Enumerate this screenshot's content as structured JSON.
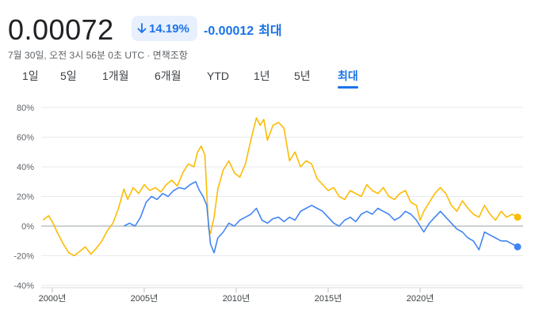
{
  "quote": {
    "price": "0.00072",
    "percent_change": "14.19%",
    "percent_direction": "down",
    "abs_change": "-0.00012",
    "abs_change_period": "최대",
    "timestamp": "7월 30일, 오전 3시 56분 0초 UTC · 면책조항"
  },
  "tabs": [
    {
      "label": "1일",
      "active": false
    },
    {
      "label": "5일",
      "active": false
    },
    {
      "label": "1개월",
      "active": false
    },
    {
      "label": "6개월",
      "active": false
    },
    {
      "label": "YTD",
      "active": false
    },
    {
      "label": "1년",
      "active": false
    },
    {
      "label": "5년",
      "active": false
    },
    {
      "label": "최대",
      "active": true
    }
  ],
  "colors": {
    "accent_blue": "#1a73e8",
    "series_blue": "#4285f4",
    "series_yellow": "#fbbc04",
    "grid": "#e8eaed",
    "zero_line": "#9aa0a6"
  },
  "chart_data": {
    "type": "line",
    "y_ticks": [
      "80%",
      "60%",
      "40%",
      "20%",
      "0%",
      "-20%",
      "-40%"
    ],
    "y_tick_values": [
      80,
      60,
      40,
      20,
      0,
      -20,
      -40
    ],
    "ylim": [
      -40,
      80
    ],
    "xlim": [
      1999.4,
      2025.6
    ],
    "x_ticks": [
      "2000년",
      "2005년",
      "2010년",
      "2015년",
      "2020년"
    ],
    "x_tick_values": [
      2000,
      2005,
      2010,
      2015,
      2020
    ],
    "grid": true,
    "series": [
      {
        "color": "#fbbc04",
        "end_marker": true,
        "x": [
          1999.5,
          1999.8,
          2000.0,
          2000.3,
          2000.6,
          2000.9,
          2001.2,
          2001.5,
          2001.8,
          2002.1,
          2002.4,
          2002.7,
          2003.0,
          2003.3,
          2003.6,
          2003.9,
          2004.1,
          2004.4,
          2004.7,
          2005.0,
          2005.3,
          2005.6,
          2005.9,
          2006.2,
          2006.5,
          2006.8,
          2007.1,
          2007.4,
          2007.7,
          2007.9,
          2008.1,
          2008.3,
          2008.5,
          2008.6,
          2008.8,
          2009.0,
          2009.3,
          2009.6,
          2009.9,
          2010.2,
          2010.5,
          2010.8,
          2011.1,
          2011.3,
          2011.5,
          2011.7,
          2012.0,
          2012.3,
          2012.6,
          2012.9,
          2013.2,
          2013.5,
          2013.8,
          2014.1,
          2014.4,
          2014.7,
          2015.0,
          2015.3,
          2015.6,
          2015.9,
          2016.2,
          2016.5,
          2016.8,
          2017.1,
          2017.4,
          2017.7,
          2018.0,
          2018.3,
          2018.6,
          2018.9,
          2019.2,
          2019.5,
          2019.8,
          2020.0,
          2020.2,
          2020.5,
          2020.8,
          2021.1,
          2021.4,
          2021.7,
          2022.0,
          2022.3,
          2022.6,
          2022.9,
          2023.2,
          2023.5,
          2023.8,
          2024.1,
          2024.4,
          2024.7,
          2025.0,
          2025.3
        ],
        "y": [
          4,
          7,
          3,
          -5,
          -12,
          -18,
          -20,
          -17,
          -14,
          -19,
          -15,
          -10,
          -3,
          2,
          12,
          25,
          18,
          26,
          22,
          28,
          24,
          26,
          23,
          28,
          31,
          27,
          36,
          42,
          40,
          50,
          54,
          48,
          -2,
          -5,
          6,
          25,
          38,
          44,
          36,
          33,
          42,
          58,
          73,
          68,
          72,
          58,
          68,
          70,
          66,
          44,
          50,
          40,
          44,
          42,
          32,
          28,
          24,
          26,
          20,
          18,
          24,
          22,
          20,
          28,
          24,
          22,
          26,
          20,
          18,
          22,
          24,
          16,
          14,
          4,
          10,
          16,
          22,
          26,
          22,
          14,
          10,
          17,
          12,
          8,
          6,
          14,
          8,
          4,
          10,
          6,
          8,
          6
        ]
      },
      {
        "color": "#4285f4",
        "end_marker": true,
        "x": [
          2003.9,
          2004.2,
          2004.5,
          2004.8,
          2005.1,
          2005.4,
          2005.7,
          2006.0,
          2006.3,
          2006.6,
          2006.9,
          2007.2,
          2007.5,
          2007.8,
          2008.0,
          2008.2,
          2008.4,
          2008.6,
          2008.8,
          2009.0,
          2009.3,
          2009.6,
          2009.9,
          2010.2,
          2010.5,
          2010.8,
          2011.1,
          2011.4,
          2011.7,
          2012.0,
          2012.3,
          2012.6,
          2012.9,
          2013.2,
          2013.5,
          2013.8,
          2014.1,
          2014.4,
          2014.7,
          2015.0,
          2015.3,
          2015.6,
          2015.9,
          2016.2,
          2016.5,
          2016.8,
          2017.1,
          2017.4,
          2017.7,
          2018.0,
          2018.3,
          2018.6,
          2018.9,
          2019.2,
          2019.5,
          2019.8,
          2020.0,
          2020.2,
          2020.5,
          2020.8,
          2021.1,
          2021.4,
          2021.7,
          2022.0,
          2022.3,
          2022.6,
          2022.9,
          2023.2,
          2023.5,
          2023.8,
          2024.1,
          2024.4,
          2024.7,
          2025.0,
          2025.3
        ],
        "y": [
          0,
          2,
          0,
          6,
          16,
          20,
          18,
          22,
          20,
          24,
          26,
          25,
          28,
          30,
          24,
          20,
          14,
          -12,
          -18,
          -8,
          -4,
          2,
          0,
          4,
          6,
          8,
          12,
          4,
          2,
          5,
          6,
          3,
          6,
          4,
          10,
          12,
          14,
          12,
          10,
          6,
          2,
          0,
          4,
          6,
          3,
          8,
          10,
          8,
          12,
          10,
          8,
          4,
          6,
          10,
          8,
          4,
          0,
          -4,
          2,
          6,
          10,
          6,
          2,
          -2,
          -4,
          -8,
          -10,
          -16,
          -4,
          -6,
          -8,
          -10,
          -10,
          -12,
          -14
        ]
      }
    ]
  }
}
